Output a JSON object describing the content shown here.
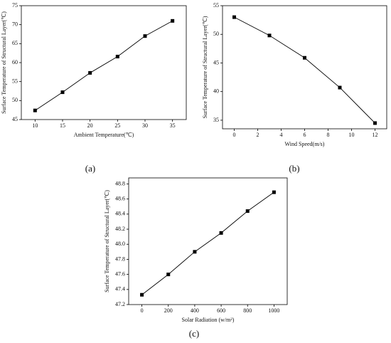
{
  "chart_data": [
    {
      "type": "line",
      "x": [
        10,
        15,
        20,
        25,
        30,
        35
      ],
      "values": [
        47.4,
        52.2,
        57.3,
        61.6,
        67,
        71
      ],
      "color": "#000000",
      "xlim": [
        7.5,
        37.5
      ],
      "ylim": [
        45,
        75
      ],
      "xticks": [
        10,
        15,
        20,
        25,
        30,
        35
      ],
      "yticks": [
        45,
        50,
        55,
        60,
        65,
        70,
        75
      ],
      "xlabel": "Ambient Temperature(℃)",
      "ylabel": "Surface Temperature of Structural Layer(℃)",
      "caption": "(a)"
    },
    {
      "type": "line",
      "x": [
        0,
        3,
        6,
        9,
        12
      ],
      "values": [
        53,
        49.8,
        45.9,
        40.7,
        34.5
      ],
      "color": "#000000",
      "xlim": [
        -1,
        13
      ],
      "ylim": [
        33.5,
        55
      ],
      "xticks": [
        0,
        2,
        4,
        6,
        8,
        10,
        12
      ],
      "yticks": [
        35,
        40,
        45,
        50,
        55
      ],
      "xlabel": "Wind Speed(m/s)",
      "ylabel": "Surface Temperature of Structural Layer(℃)",
      "caption": "(b)"
    },
    {
      "type": "line",
      "x": [
        0,
        200,
        400,
        600,
        800,
        1000
      ],
      "values": [
        47.33,
        47.6,
        47.9,
        48.15,
        48.44,
        48.69
      ],
      "color": "#000000",
      "xlim": [
        -100,
        1100
      ],
      "ylim": [
        47.2,
        48.88
      ],
      "xticks": [
        0,
        200,
        400,
        600,
        800,
        1000
      ],
      "yticks": [
        47.2,
        47.4,
        47.6,
        47.8,
        {
          "value": 48,
          "label": "48.0"
        },
        48.2,
        48.4,
        48.6,
        48.8
      ],
      "xlabel": "Solar Radiation  (w/m²)",
      "ylabel": "Surface Temperature of Structural Layer(℃)",
      "caption": "(c)"
    }
  ]
}
